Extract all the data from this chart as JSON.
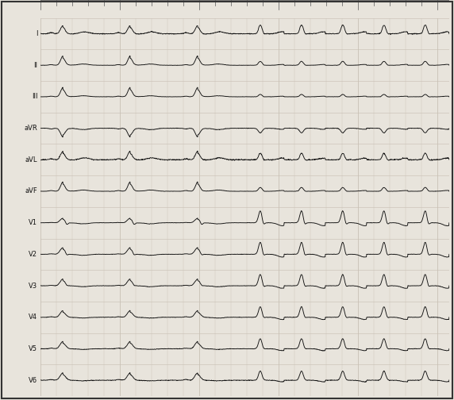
{
  "leads": [
    "I",
    "II",
    "III",
    "aVR",
    "aVL",
    "aVF",
    "V1",
    "V2",
    "V3",
    "V4",
    "V5",
    "V6"
  ],
  "bg_color": "#e8e4dc",
  "grid_color": "#c8c0b4",
  "line_color": "#111111",
  "border_color": "#333333",
  "label_color": "#111111",
  "ruler_color": "#555555",
  "fs": 250,
  "wpw_beats": 3,
  "svt_beats": 5,
  "wpw_period": 0.85,
  "svt_period": 0.52
}
